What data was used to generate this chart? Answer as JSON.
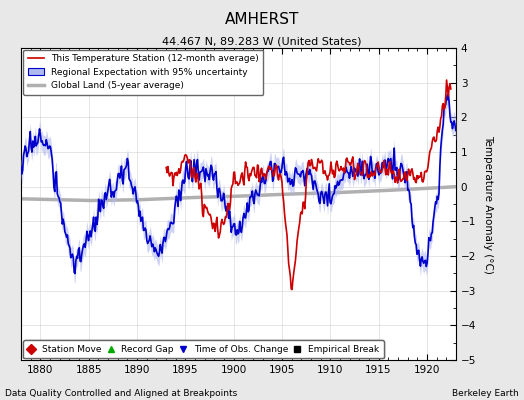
{
  "title": "AMHERST",
  "subtitle": "44.467 N, 89.283 W (United States)",
  "ylabel": "Temperature Anomaly (°C)",
  "xlabel_note": "Data Quality Controlled and Aligned at Breakpoints",
  "credit": "Berkeley Earth",
  "xlim": [
    1878,
    1923
  ],
  "ylim": [
    -5,
    4
  ],
  "yticks": [
    -5,
    -4,
    -3,
    -2,
    -1,
    0,
    1,
    2,
    3,
    4
  ],
  "xticks": [
    1880,
    1885,
    1890,
    1895,
    1900,
    1905,
    1910,
    1915,
    1920
  ],
  "bg_color": "#e8e8e8",
  "plot_bg_color": "#ffffff",
  "legend1_entries": [
    {
      "label": "This Temperature Station (12-month average)",
      "color": "#cc0000",
      "lw": 1.2
    },
    {
      "label": "Regional Expectation with 95% uncertainty",
      "color": "#0000cc",
      "lw": 1.2
    },
    {
      "label": "Global Land (5-year average)",
      "color": "#b0b0b0",
      "lw": 2.5
    }
  ],
  "legend2_entries": [
    {
      "label": "Station Move",
      "color": "#cc0000",
      "marker": "D"
    },
    {
      "label": "Record Gap",
      "color": "#00aa00",
      "marker": "^"
    },
    {
      "label": "Time of Obs. Change",
      "color": "#0000cc",
      "marker": "v"
    },
    {
      "label": "Empirical Break",
      "color": "#000000",
      "marker": "s"
    }
  ],
  "uncertainty_color": "#b0b8f0",
  "uncertainty_alpha": 0.6
}
